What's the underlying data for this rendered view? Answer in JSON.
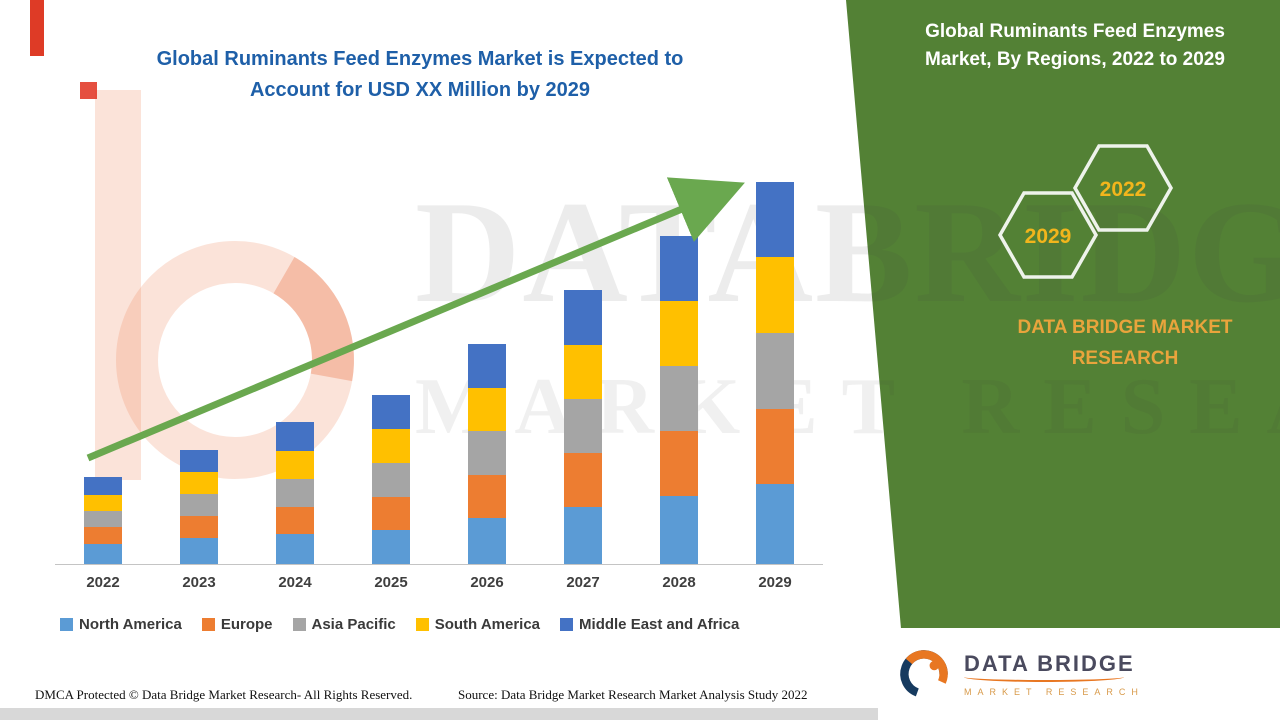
{
  "header": {
    "title": "Global Ruminants Feed Enzymes Market is Expected to Account for USD XX Million by 2029"
  },
  "side_panel": {
    "title": "Global Ruminants Feed Enzymes Market, By Regions, 2022 to 2029",
    "hexagon_years": [
      "2029",
      "2022"
    ],
    "brand": "DATA BRIDGE MARKET RESEARCH"
  },
  "watermark": {
    "line1": "DATABRIDGE",
    "line2": "MARKET RESEARCH"
  },
  "footer": {
    "dmca": "DMCA Protected © Data Bridge Market Research- All Rights Reserved.",
    "source": "Source: Data Bridge Market Research Market Analysis Study 2022"
  },
  "logo": {
    "name": "DATA BRIDGE",
    "tagline": "MARKET RESEARCH"
  },
  "colors": {
    "band-green": "#538135",
    "arrow-green": "#6aa84f",
    "title-blue": "#1e5fa8",
    "hex-yellow": "#f2b51c",
    "brand-gold": "#e9a43c",
    "label-gray": "#3f3f3f",
    "logo-navy": "#163a5f",
    "logo-orange": "#e87722"
  },
  "chart_data": {
    "type": "bar",
    "stacked": true,
    "title": "Global Ruminants Feed Enzymes Market is Expected to Account for USD XX Million by 2029",
    "categories": [
      "2022",
      "2023",
      "2024",
      "2025",
      "2026",
      "2027",
      "2028",
      "2029"
    ],
    "series": [
      {
        "name": "North America",
        "color": "#5b9bd5",
        "values": [
          20,
          26,
          30,
          34,
          46,
          57,
          68,
          80
        ]
      },
      {
        "name": "Europe",
        "color": "#ed7d31",
        "values": [
          17,
          22,
          27,
          33,
          43,
          54,
          65,
          75
        ]
      },
      {
        "name": "Asia Pacific",
        "color": "#a5a5a5",
        "values": [
          16,
          22,
          28,
          34,
          44,
          54,
          65,
          76
        ]
      },
      {
        "name": "South America",
        "color": "#ffc000",
        "values": [
          16,
          22,
          28,
          34,
          43,
          54,
          65,
          76
        ]
      },
      {
        "name": "Middle East and Africa",
        "color": "#4472c4",
        "values": [
          18,
          22,
          29,
          34,
          44,
          55,
          65,
          75
        ]
      }
    ],
    "units": "relative index (no numeric axis labels shown)",
    "xlabel": "",
    "ylabel": "",
    "ylim": [
      0,
      400
    ],
    "grid": false,
    "legend_position": "bottom",
    "trend_arrow": true
  }
}
